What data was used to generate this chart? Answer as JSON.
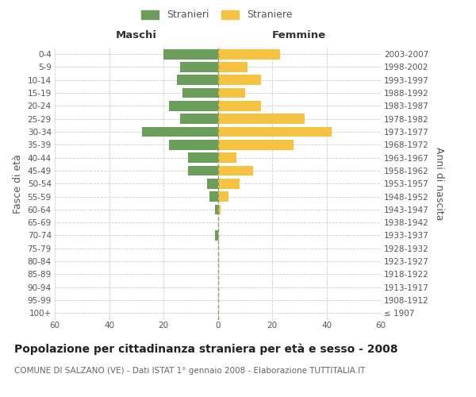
{
  "age_groups": [
    "100+",
    "95-99",
    "90-94",
    "85-89",
    "80-84",
    "75-79",
    "70-74",
    "65-69",
    "60-64",
    "55-59",
    "50-54",
    "45-49",
    "40-44",
    "35-39",
    "30-34",
    "25-29",
    "20-24",
    "15-19",
    "10-14",
    "5-9",
    "0-4"
  ],
  "birth_years": [
    "≤ 1907",
    "1908-1912",
    "1913-1917",
    "1918-1922",
    "1923-1927",
    "1928-1932",
    "1933-1937",
    "1938-1942",
    "1943-1947",
    "1948-1952",
    "1953-1957",
    "1958-1962",
    "1963-1967",
    "1968-1972",
    "1973-1977",
    "1978-1982",
    "1983-1987",
    "1988-1992",
    "1993-1997",
    "1998-2002",
    "2003-2007"
  ],
  "males": [
    0,
    0,
    0,
    0,
    0,
    0,
    1,
    0,
    1,
    3,
    4,
    11,
    11,
    18,
    28,
    14,
    18,
    13,
    15,
    14,
    20
  ],
  "females": [
    0,
    0,
    0,
    0,
    0,
    0,
    0,
    0,
    1,
    4,
    8,
    13,
    7,
    28,
    42,
    32,
    16,
    10,
    16,
    11,
    23
  ],
  "male_color": "#6a9e5a",
  "female_color": "#f5c242",
  "center_line_color": "#999966",
  "grid_color": "#cccccc",
  "background_color": "#ffffff",
  "title": "Popolazione per cittadinanza straniera per età e sesso - 2008",
  "subtitle": "COMUNE DI SALZANO (VE) - Dati ISTAT 1° gennaio 2008 - Elaborazione TUTTITALIA.IT",
  "xlabel_left": "Maschi",
  "xlabel_right": "Femmine",
  "ylabel_left": "Fasce di età",
  "ylabel_right": "Anni di nascita",
  "legend_stranieri": "Stranieri",
  "legend_straniere": "Straniere",
  "xlim": 60,
  "title_fontsize": 10,
  "subtitle_fontsize": 7.5,
  "tick_fontsize": 7.5,
  "label_fontsize": 9
}
